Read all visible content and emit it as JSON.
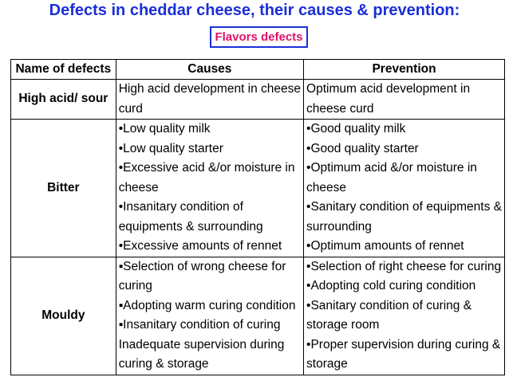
{
  "title": "Defects in cheddar cheese, their causes & prevention:",
  "subtitle": "Flavors defects",
  "table": {
    "headers": [
      "Name of defects",
      "Causes",
      "Prevention"
    ],
    "rows": [
      {
        "name": "High acid/ sour",
        "causes": [
          "High acid development in cheese",
          "curd"
        ],
        "prevention": [
          "Optimum  acid development in",
          "cheese curd"
        ]
      },
      {
        "name": "Bitter",
        "causes": [
          "•Low quality milk",
          "•Low quality starter",
          "•Excessive acid &/or moisture in",
          "cheese",
          "•Insanitary condition of",
          "equipments & surrounding",
          "•Excessive amounts of rennet"
        ],
        "prevention": [
          "•Good quality milk",
          "•Good quality starter",
          "•Optimum acid &/or moisture in",
          "cheese",
          "•Sanitary condition of equipments &",
          "surrounding",
          "•Optimum  amounts of rennet"
        ]
      },
      {
        "name": "Mouldy",
        "causes": [
          "▪Selection of wrong cheese for",
          "curing",
          "▪Adopting warm curing condition",
          "▪Insanitary condition of curing",
          "Inadequate supervision during",
          "curing & storage"
        ],
        "prevention": [
          "•Selection of right cheese for curing",
          "•Adopting cold curing condition",
          "•Sanitary condition of curing &",
          "storage room",
          "•Proper supervision during curing &",
          "storage"
        ]
      }
    ]
  },
  "colors": {
    "title": "#1a2fd6",
    "subtitle": "#e0106a",
    "box_border": "#1a2fd6"
  }
}
